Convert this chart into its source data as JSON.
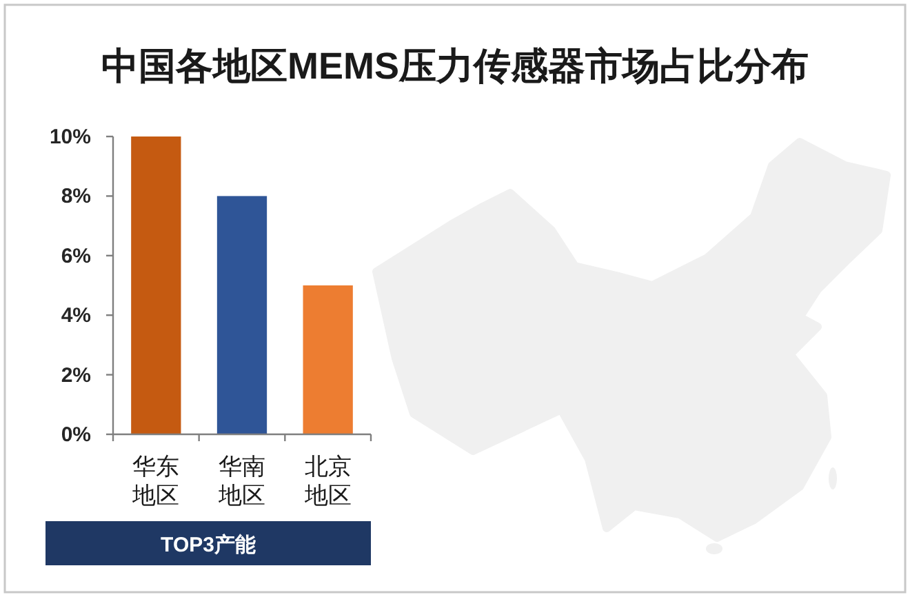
{
  "chart_data": {
    "type": "bar",
    "title": "中国各地区MEMS压力传感器市场占比分布",
    "categories": [
      "华东地区",
      "华南地区",
      "北京地区"
    ],
    "values": [
      10,
      8,
      5
    ],
    "colors": [
      "#c55a11",
      "#2f5597",
      "#ed7d31"
    ],
    "ylim": [
      0,
      10
    ],
    "yticks": [
      {
        "value": 0,
        "label": "0%"
      },
      {
        "value": 2,
        "label": "2%"
      },
      {
        "value": 4,
        "label": "4%"
      },
      {
        "value": 6,
        "label": "6%"
      },
      {
        "value": 8,
        "label": "8%"
      },
      {
        "value": 10,
        "label": "10%"
      }
    ],
    "xlabel": "TOP3产能"
  }
}
